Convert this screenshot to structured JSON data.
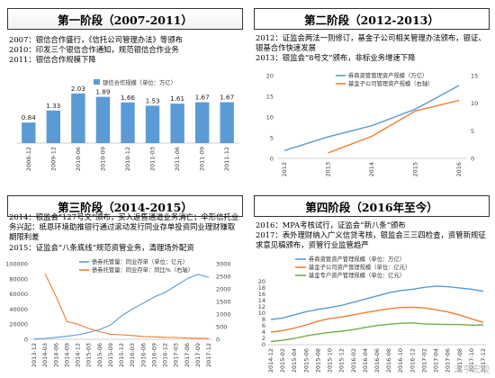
{
  "panels": [
    {
      "title": "第一阶段（2007-2011）",
      "lines": [
        "2007：银信合作盛行，《信托公司管理办法》等颁布",
        "2010：印发三个银信合作通知，规范银信合作业务",
        "2011：银信合作规模下降"
      ]
    },
    {
      "title": "第二阶段（2012-2013）",
      "lines": [
        "2012：证监会两法一则修订，基金子公司相关管理办法颁布，银证、银基合作快速发展",
        "2013：银监会“8号文”颁布，非标业务增速下降"
      ]
    },
    {
      "title": "第三阶段（2014-2015）",
      "lines": [
        "2014：银监会“127号文”颁布，买入返售通道业务消亡；伞形信托业务兴起：纸恩环境助推银行通过滚动发行同业存单投资同业理财赚取期限利差",
        "2015：证监会“八条底线”规范资管业务，清理场外配资"
      ]
    },
    {
      "title": "第四阶段（2016年至今）",
      "lines": [
        "2016：MPA考核试行，证监会“新八条”颁布",
        "2017：表外理财纳入广义信贷考核，银监会三三四检查，资管新规征求意见稿颁布，资管行业监管趋严"
      ]
    }
  ],
  "chart_data": [
    {
      "type": "bar",
      "title": "",
      "legend": [
        "银信合作规模（单位：万亿）"
      ],
      "categories": [
        "2008-12",
        "2009-12",
        "2010-06",
        "2010-09",
        "2010-12",
        "2011-03",
        "2011-06",
        "2011-09",
        "2011-12"
      ],
      "values": [
        0.84,
        1.33,
        2.03,
        1.89,
        1.66,
        1.53,
        1.61,
        1.67,
        1.67
      ],
      "value_labels": [
        "0.84",
        "1.33",
        "2.03",
        "1.89",
        "1.66",
        "1.53",
        "1.61",
        "1.67",
        "1.67"
      ],
      "ylim": [
        0,
        2.5
      ],
      "color": "#5b9bd5",
      "grid": false
    },
    {
      "type": "line",
      "title": "",
      "x": [
        "2012",
        "2013",
        "2014",
        "2015",
        "2016"
      ],
      "x_ticks": [
        "2012",
        "2013",
        "2014",
        "2015",
        "2016"
      ],
      "series": [
        {
          "name": "券商资管管理资产规模（万亿）",
          "axis": "left",
          "color": "#5b9bd5",
          "values": [
            1.9,
            5.2,
            7.9,
            11.9,
            17.6
          ]
        },
        {
          "name": "基金子公司管理资产规模（右轴）",
          "axis": "right",
          "color": "#ed7d31",
          "values": [
            null,
            1,
            4,
            8.6,
            10.5
          ]
        }
      ],
      "ylim_left": [
        0,
        20
      ],
      "yticks_left": [
        "0",
        "5",
        "10",
        "15",
        "20"
      ],
      "ylim_right": [
        0,
        15
      ],
      "yticks_right": [
        "0",
        "5",
        "10",
        "15"
      ],
      "grid": false
    },
    {
      "type": "line",
      "title": "",
      "x": [
        "2013-12",
        "2014-03",
        "2014-06",
        "2014-09",
        "2014-12",
        "2015-03",
        "2015-06",
        "2015-09",
        "2015-12",
        "2016-03",
        "2016-06",
        "2016-09",
        "2016-12",
        "2017-03",
        "2017-06",
        "2017-09",
        "2017-12"
      ],
      "x_ticks": [
        "2013-12",
        "2014-03",
        "2014-06",
        "2014-09",
        "2014-12",
        "2015-03",
        "2015-06",
        "2015-09",
        "2015-12",
        "2016-03",
        "2016-06",
        "2016-09",
        "2016-12",
        "2017-03",
        "2017-06",
        "2017-09",
        "2017-12"
      ],
      "series": [
        {
          "name": "债券托管量：同业存单（单位：亿元）",
          "axis": "left",
          "color": "#5b9bd5",
          "values": [
            300,
            1200,
            2500,
            4000,
            6000,
            9000,
            13000,
            19000,
            31000,
            40000,
            48000,
            56000,
            62000,
            71000,
            80000,
            86000,
            82000
          ]
        },
        {
          "name": "债券托管量：同业存单：同比%（右轴）",
          "axis": "right",
          "color": "#ed7d31",
          "values": [
            null,
            2600,
            1700,
            700,
            600,
            430,
            300,
            200,
            180,
            150,
            110,
            95,
            80,
            70,
            50,
            40,
            30
          ]
        }
      ],
      "ylim_left": [
        0,
        100000
      ],
      "yticks_left": [
        "0",
        "20000",
        "40000",
        "60000",
        "80000",
        "100000"
      ],
      "ylim_right": [
        0,
        3000
      ],
      "yticks_right": [
        "0",
        "500",
        "1000",
        "1500",
        "2000",
        "2500",
        "3000"
      ],
      "grid": false
    },
    {
      "type": "line",
      "title": "",
      "x": [
        "2014-12",
        "2015-02",
        "2015-04",
        "2015-06",
        "2015-08",
        "2015-10",
        "2015-12",
        "2016-02",
        "2016-04",
        "2016-06",
        "2016-08",
        "2016-10",
        "2016-12",
        "2017-02",
        "2017-04",
        "2017-06",
        "2017-08",
        "2017-10",
        "2017-12"
      ],
      "x_ticks": [
        "2014-12",
        "2015-02",
        "2015-04",
        "2015-06",
        "2015-08",
        "2015-10",
        "2015-12",
        "2016-02",
        "2016-04",
        "2016-06",
        "2016-08",
        "2016-10",
        "2016-12",
        "2017-02",
        "2017-04",
        "2017-06",
        "2017-08",
        "2017-10",
        "2017-12"
      ],
      "series": [
        {
          "name": "券商资管资产管理规模（单位：万亿）",
          "color": "#5b9bd5",
          "values": [
            8,
            8.5,
            9.5,
            10.5,
            11.2,
            11.8,
            12.5,
            13.5,
            14.5,
            15.5,
            16.5,
            17.2,
            17.6,
            18.2,
            18.6,
            18.4,
            18.0,
            17.6,
            17.0
          ]
        },
        {
          "name": "基金子公司资产管理规模（单位：亿元）",
          "color": "#ed7d31",
          "values": [
            4,
            4.5,
            5.3,
            6.3,
            7.5,
            8.3,
            8.8,
            9.5,
            10.2,
            10.8,
            11.4,
            11.8,
            11.9,
            11.7,
            11.1,
            10.4,
            9.4,
            8.2,
            7.1
          ]
        },
        {
          "name": "基金专户资产管理规模（单位：亿元）",
          "color": "#70ad47",
          "values": [
            1,
            1.4,
            2,
            2.8,
            3.4,
            3.9,
            4.3,
            4.8,
            5.5,
            6.1,
            6.5,
            6.8,
            6.9,
            6.6,
            6.5,
            6.4,
            6.4,
            6.2,
            6.3
          ]
        }
      ],
      "ylim": [
        0,
        20
      ],
      "yticks": [
        "0",
        "2",
        "4",
        "6",
        "8",
        "10",
        "12",
        "14",
        "16",
        "18",
        "20"
      ],
      "grid": false
    }
  ],
  "watermark": "泽平宏观"
}
